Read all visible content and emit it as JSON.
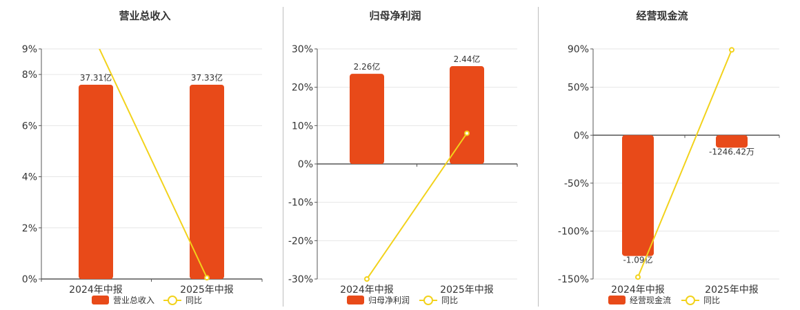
{
  "colors": {
    "bar": "#e84a19",
    "line": "#f2d21b",
    "axis": "#555555",
    "grid": "#e6e6e6"
  },
  "chart_data": [
    {
      "type": "bar",
      "title": "营业总收入",
      "categories": [
        "2024年中报",
        "2025年中报"
      ],
      "y_ticks": [
        "0%",
        "2%",
        "4%",
        "6%",
        "8%",
        "9%"
      ],
      "ylim": [
        0,
        9
      ],
      "series": [
        {
          "name": "营业总收入",
          "type": "bar",
          "values": [
            7.6,
            7.6
          ],
          "labels": [
            "37.31亿",
            "37.33亿"
          ]
        },
        {
          "name": "同比",
          "type": "line",
          "values": [
            9.3,
            0.05
          ]
        }
      ]
    },
    {
      "type": "bar",
      "title": "归母净利润",
      "categories": [
        "2024年中报",
        "2025年中报"
      ],
      "y_ticks": [
        "-30%",
        "-20%",
        "-10%",
        "0%",
        "10%",
        "20%",
        "30%"
      ],
      "ylim": [
        -30,
        30
      ],
      "series": [
        {
          "name": "归母净利润",
          "type": "bar",
          "values": [
            23.5,
            25.5
          ],
          "labels": [
            "2.26亿",
            "2.44亿"
          ]
        },
        {
          "name": "同比",
          "type": "line",
          "values": [
            -30,
            8
          ]
        }
      ]
    },
    {
      "type": "bar",
      "title": "经营现金流",
      "categories": [
        "2024年中报",
        "2025年中报"
      ],
      "y_ticks": [
        "-150%",
        "-100%",
        "-50%",
        "0%",
        "50%",
        "90%"
      ],
      "ylim": [
        -150,
        90
      ],
      "series": [
        {
          "name": "经营现金流",
          "type": "bar",
          "values": [
            -126,
            -13
          ],
          "labels": [
            "-1.09亿",
            "-1246.42万"
          ]
        },
        {
          "name": "同比",
          "type": "line",
          "values": [
            -148,
            89
          ]
        }
      ]
    }
  ]
}
